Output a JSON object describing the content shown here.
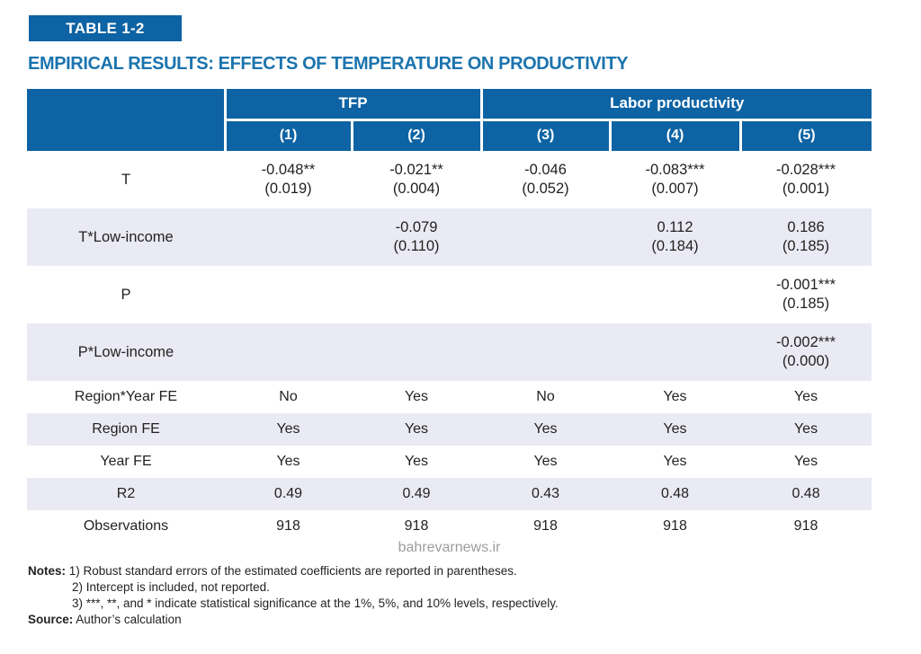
{
  "banner": {
    "label": "TABLE 1-2"
  },
  "title": "EMPIRICAL RESULTS: EFFECTS OF TEMPERATURE ON PRODUCTIVITY",
  "colors": {
    "primary_blue": "#0d63a3",
    "title_blue": "#1b74ae",
    "row_alt_bg": "#e9eaf3",
    "text": "#231f20",
    "watermark_gray": "#9d9d9d"
  },
  "table": {
    "group_headers": {
      "tfp": "TFP",
      "labor": "Labor productivity"
    },
    "column_headers": [
      "(1)",
      "(2)",
      "(3)",
      "(4)",
      "(5)"
    ],
    "coef_rows": [
      {
        "label": "T",
        "cells": [
          {
            "est": "-0.048**",
            "se": "(0.019)"
          },
          {
            "est": "-0.021**",
            "se": "(0.004)"
          },
          {
            "est": "-0.046",
            "se": "(0.052)"
          },
          {
            "est": "-0.083***",
            "se": "(0.007)"
          },
          {
            "est": "-0.028***",
            "se": "(0.001)"
          }
        ]
      },
      {
        "label": "T*Low-income",
        "cells": [
          {
            "est": "",
            "se": ""
          },
          {
            "est": "-0.079",
            "se": "(0.110)"
          },
          {
            "est": "",
            "se": ""
          },
          {
            "est": "0.112",
            "se": "(0.184)"
          },
          {
            "est": "0.186",
            "se": "(0.185)"
          }
        ]
      },
      {
        "label": "P",
        "cells": [
          {
            "est": "",
            "se": ""
          },
          {
            "est": "",
            "se": ""
          },
          {
            "est": "",
            "se": ""
          },
          {
            "est": "",
            "se": ""
          },
          {
            "est": "-0.001***",
            "se": "(0.185)"
          }
        ]
      },
      {
        "label": "P*Low-income",
        "cells": [
          {
            "est": "",
            "se": ""
          },
          {
            "est": "",
            "se": ""
          },
          {
            "est": "",
            "se": ""
          },
          {
            "est": "",
            "se": ""
          },
          {
            "est": "-0.002***",
            "se": "(0.000)"
          }
        ]
      }
    ],
    "stat_rows": [
      {
        "label": "Region*Year FE",
        "values": [
          "No",
          "Yes",
          "No",
          "Yes",
          "Yes"
        ]
      },
      {
        "label": "Region FE",
        "values": [
          "Yes",
          "Yes",
          "Yes",
          "Yes",
          "Yes"
        ]
      },
      {
        "label": "Year FE",
        "values": [
          "Yes",
          "Yes",
          "Yes",
          "Yes",
          "Yes"
        ]
      },
      {
        "label": "R2",
        "values": [
          "0.49",
          "0.49",
          "0.43",
          "0.48",
          "0.48"
        ]
      },
      {
        "label": "Observations",
        "values": [
          "918",
          "918",
          "918",
          "918",
          "918"
        ]
      }
    ]
  },
  "watermark": "bahrevarnews.ir",
  "notes": {
    "label": "Notes:",
    "items": [
      "1) Robust standard errors of the estimated coefficients are reported in parentheses.",
      "2) Intercept is included, not reported.",
      "3) ***, **, and * indicate statistical significance at the 1%, 5%, and 10% levels, respectively."
    ],
    "source_label": "Source:",
    "source_text": "Author’s calculation"
  }
}
